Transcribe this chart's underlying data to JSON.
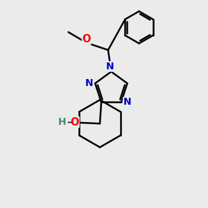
{
  "bg_color": "#ebebeb",
  "atom_color_N": "#0000cc",
  "atom_color_O": "#ff0000",
  "atom_color_C": "#000000",
  "atom_color_H": "#4a8a6a",
  "line_color": "#000000",
  "line_width": 1.8,
  "figsize": [
    3.0,
    3.0
  ],
  "dpi": 100,
  "xlim": [
    0,
    10
  ],
  "ylim": [
    0,
    10
  ]
}
